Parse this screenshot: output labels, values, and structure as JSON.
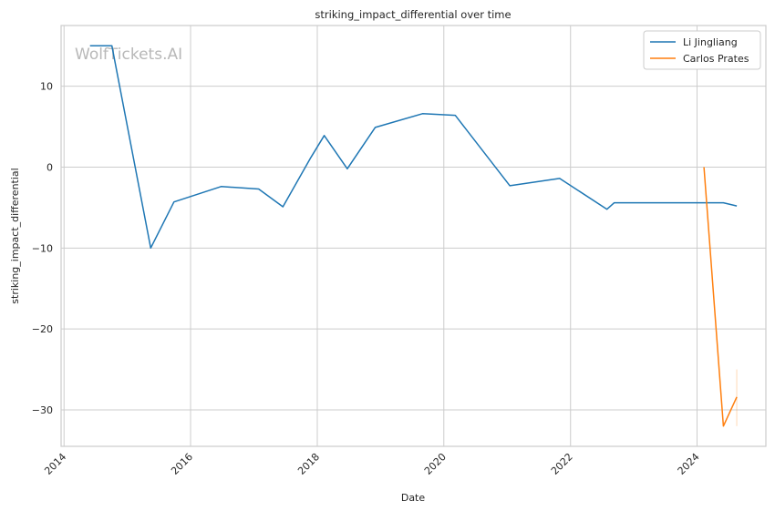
{
  "chart_data": {
    "type": "line",
    "title": "striking_impact_differential over time",
    "xlabel": "Date",
    "ylabel": "striking_impact_differential",
    "watermark": "WolfTickets.AI",
    "x_ticks": [
      "2014",
      "2016",
      "2018",
      "2020",
      "2022",
      "2024"
    ],
    "y_ticks": [
      "−30",
      "−20",
      "−10",
      "0",
      "10"
    ],
    "xlim": [
      "2013-12-15",
      "2025-02-01"
    ],
    "ylim": [
      -34.5,
      17.5
    ],
    "grid": true,
    "legend_position": "top-right",
    "series": [
      {
        "name": "Li Jingliang",
        "color": "#1f77b4",
        "points": [
          {
            "x": "2014-05-31",
            "y": 15.0
          },
          {
            "x": "2014-10-04",
            "y": 15.0
          },
          {
            "x": "2015-05-16",
            "y": -10.0
          },
          {
            "x": "2015-09-27",
            "y": -4.3
          },
          {
            "x": "2016-06-25",
            "y": -2.4
          },
          {
            "x": "2017-01-28",
            "y": -2.7
          },
          {
            "x": "2017-06-17",
            "y": -4.9
          },
          {
            "x": "2017-11-25",
            "y": 1.2
          },
          {
            "x": "2018-02-10",
            "y": 3.9
          },
          {
            "x": "2018-06-23",
            "y": -0.2
          },
          {
            "x": "2018-12-01",
            "y": 4.9
          },
          {
            "x": "2019-08-31",
            "y": 6.6
          },
          {
            "x": "2020-03-07",
            "y": 6.4
          },
          {
            "x": "2021-01-16",
            "y": -2.3
          },
          {
            "x": "2021-10-30",
            "y": -1.4
          },
          {
            "x": "2022-07-30",
            "y": -5.2
          },
          {
            "x": "2022-09-10",
            "y": -4.4
          },
          {
            "x": "2024-06-01",
            "y": -4.4
          },
          {
            "x": "2024-08-17",
            "y": -4.8
          }
        ]
      },
      {
        "name": "Carlos Prates",
        "color": "#ff7f0e",
        "points": [
          {
            "x": "2024-02-10",
            "y": 0.0
          },
          {
            "x": "2024-06-01",
            "y": -32.0
          },
          {
            "x": "2024-08-17",
            "y": -28.4
          }
        ],
        "error_range": {
          "x": "2024-08-17",
          "low": -32.0,
          "high": -25.0
        }
      }
    ]
  }
}
